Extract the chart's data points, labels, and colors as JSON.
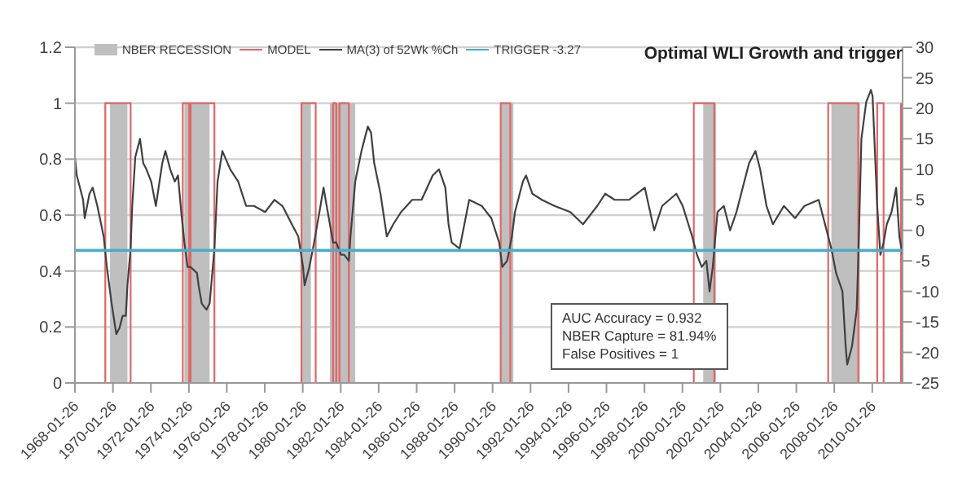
{
  "chart_data": {
    "type": "line",
    "title": "Optimal WLI Growth and trigger",
    "annotations": [
      "AUC Accuracy = 0.932",
      "NBER Capture = 81.94%",
      "False Positives = 1"
    ],
    "xlim": [
      "1968-01-26",
      "2011-09"
    ],
    "xticks": [
      "1968-01-26",
      "1970-01-26",
      "1972-01-26",
      "1974-01-26",
      "1976-01-26",
      "1978-01-26",
      "1980-01-26",
      "1982-01-26",
      "1984-01-26",
      "1986-01-26",
      "1988-01-26",
      "1990-01-26",
      "1992-01-26",
      "1994-01-26",
      "1996-01-26",
      "1998-01-26",
      "2000-01-26",
      "2002-01-26",
      "2004-01-26",
      "2006-01-26",
      "2008-01-26",
      "2010-01-26"
    ],
    "ylim": [
      0,
      1.2
    ],
    "yticks": [
      0,
      0.2,
      0.4,
      0.6,
      0.8,
      1,
      1.2
    ],
    "y2lim": [
      -25,
      30
    ],
    "y2ticks": [
      -25,
      -20,
      -15,
      -10,
      -5,
      0,
      5,
      10,
      15,
      20,
      25,
      30
    ],
    "grid": "y",
    "legend": "top left",
    "series": [
      {
        "name": "NBER RECESSION",
        "type": "area",
        "color": "#bfbfbf",
        "x": [
          "1969-12",
          "1969-12",
          "1970-11",
          "1970-11",
          "1973-11",
          "1973-11",
          "1975-03",
          "1975-03",
          "1980-01",
          "1980-01",
          "1980-07",
          "1980-07",
          "1981-07",
          "1981-07",
          "1982-11",
          "1982-11",
          "1990-07",
          "1990-07",
          "1991-03",
          "1991-03",
          "2001-03",
          "2001-03",
          "2001-11",
          "2001-11",
          "2007-12",
          "2007-12",
          "2009-06",
          "2009-06"
        ],
        "values": [
          0,
          1,
          1,
          0,
          0,
          1,
          1,
          0,
          0,
          1,
          1,
          0,
          0,
          1,
          1,
          0,
          0,
          1,
          1,
          0,
          0,
          1,
          1,
          0,
          0,
          1,
          1,
          0
        ]
      },
      {
        "name": "MODEL",
        "color": "#e06666",
        "x": [
          "1969-09",
          "1969-09",
          "1971-01",
          "1971-01",
          "1973-10",
          "1973-10",
          "1974-02",
          "1974-02",
          "1974-03",
          "1974-03",
          "1975-06",
          "1975-06",
          "1980-01",
          "1980-01",
          "1980-10",
          "1980-10",
          "1981-09",
          "1981-09",
          "1981-11",
          "1981-11",
          "1982-01",
          "1982-01",
          "1982-07",
          "1982-07",
          "1990-07",
          "1990-07",
          "1991-01",
          "1991-01",
          "2000-09",
          "2000-09",
          "2001-10",
          "2001-10",
          "2007-10",
          "2007-10",
          "2009-05",
          "2009-05",
          "2010-05",
          "2010-05",
          "2010-09",
          "2010-09",
          "2011-08",
          "2011-08"
        ],
        "values": [
          0,
          1,
          1,
          0,
          0,
          1,
          1,
          0,
          0,
          1,
          1,
          0,
          0,
          1,
          1,
          0,
          0,
          1,
          1,
          0,
          0,
          1,
          1,
          0,
          0,
          1,
          1,
          0,
          0,
          1,
          1,
          0,
          0,
          1,
          1,
          0,
          0,
          1,
          1,
          0,
          0,
          1
        ]
      },
      {
        "name": "MA(3) of 52Wk %Ch",
        "axis": "y2",
        "color": "#404040",
        "x": [
          "1968-01-26",
          "1968-03",
          "1968-07",
          "1968-08",
          "1968-11",
          "1969-01",
          "1969-04",
          "1969-08",
          "1969-10",
          "1970-01",
          "1970-04",
          "1970-06",
          "1970-08",
          "1970-10",
          "1970-11",
          "1971-01",
          "1971-02",
          "1971-04",
          "1971-07",
          "1971-09",
          "1971-11",
          "1972-02",
          "1972-05",
          "1972-09",
          "1972-11",
          "1973-02",
          "1973-05",
          "1973-07",
          "1973-09",
          "1973-11",
          "1974-01",
          "1974-03",
          "1974-07",
          "1974-08",
          "1974-10",
          "1975-01",
          "1975-03",
          "1975-04",
          "1975-06",
          "1975-08",
          "1975-11",
          "1976-04",
          "1976-09",
          "1977-02",
          "1977-07",
          "1978-02",
          "1978-08",
          "1979-01",
          "1979-07",
          "1979-11",
          "1980-02",
          "1980-03",
          "1980-06",
          "1980-09",
          "1981-01",
          "1981-03",
          "1981-05",
          "1981-09",
          "1981-11",
          "1982-02",
          "1982-04",
          "1982-07",
          "1982-08",
          "1982-11",
          "1983-03",
          "1983-07",
          "1983-09",
          "1983-11",
          "1984-03",
          "1984-07",
          "1984-11",
          "1985-04",
          "1985-11",
          "1986-05",
          "1986-12",
          "1987-04",
          "1987-08",
          "1987-10",
          "1987-12",
          "1988-05",
          "1988-08",
          "1988-11",
          "1989-07",
          "1990-01",
          "1990-06",
          "1990-08",
          "1990-11",
          "1991-02",
          "1991-04",
          "1991-09",
          "1991-11",
          "1992-03",
          "1992-09",
          "1993-05",
          "1994-03",
          "1994-11",
          "1995-08",
          "1996-01",
          "1996-07",
          "1997-04",
          "1998-02",
          "1998-08",
          "1999-01",
          "1999-10",
          "2000-02",
          "2000-08",
          "2000-11",
          "2001-02",
          "2001-05",
          "2001-07",
          "2001-09",
          "2001-12",
          "2002-04",
          "2002-08",
          "2002-12",
          "2003-05",
          "2003-08",
          "2003-12",
          "2004-03",
          "2004-07",
          "2004-11",
          "2005-06",
          "2006-01",
          "2006-07",
          "2007-04",
          "2007-08",
          "2007-12",
          "2008-03",
          "2008-07",
          "2008-09",
          "2008-10",
          "2009-01",
          "2009-04",
          "2009-05",
          "2009-07",
          "2009-10",
          "2010-01",
          "2010-02",
          "2010-05",
          "2010-07",
          "2010-09",
          "2010-11",
          "2011-02",
          "2011-05",
          "2011-07",
          "2011-09"
        ],
        "values": [
          12,
          9,
          5,
          2,
          6,
          7,
          4,
          -1,
          -6,
          -12,
          -17,
          -16,
          -14,
          -14,
          -9,
          -3,
          4,
          12,
          15,
          11,
          10,
          8,
          4,
          11,
          13,
          10,
          8,
          9,
          3,
          -2,
          -6,
          -6,
          -7,
          -9,
          -12,
          -13,
          -12,
          -9,
          -3,
          8,
          13,
          10,
          8,
          4,
          4,
          3,
          5,
          4,
          1,
          -1,
          -6,
          -9,
          -6,
          -2,
          4,
          7,
          4,
          -2,
          -2,
          -4,
          -4,
          -5,
          -1,
          8,
          13,
          17,
          16,
          11,
          6,
          -1,
          1,
          3,
          5,
          5,
          9,
          10,
          7,
          1,
          -2,
          -3,
          1,
          5,
          4,
          2,
          -2,
          -6,
          -5,
          -1,
          3,
          8,
          9,
          6,
          5,
          4,
          3,
          1,
          4,
          6,
          5,
          5,
          7,
          0,
          4,
          6,
          4,
          -1,
          -4,
          -6,
          -5,
          -10,
          -6,
          3,
          4,
          0,
          3,
          8,
          11,
          13,
          10,
          4,
          1,
          4,
          2,
          4,
          5,
          1,
          -3,
          -7,
          -10,
          -19,
          -22,
          -19,
          -13,
          -5,
          15,
          21,
          23,
          22,
          4,
          -4,
          -2,
          1,
          3,
          7,
          -1,
          -4
        ]
      },
      {
        "name": "TRIGGER -3.27",
        "axis": "y2",
        "color": "#4bacc6",
        "x": [
          "1968-01-26",
          "2011-09"
        ],
        "values": [
          -3.27,
          -3.27
        ]
      }
    ]
  }
}
